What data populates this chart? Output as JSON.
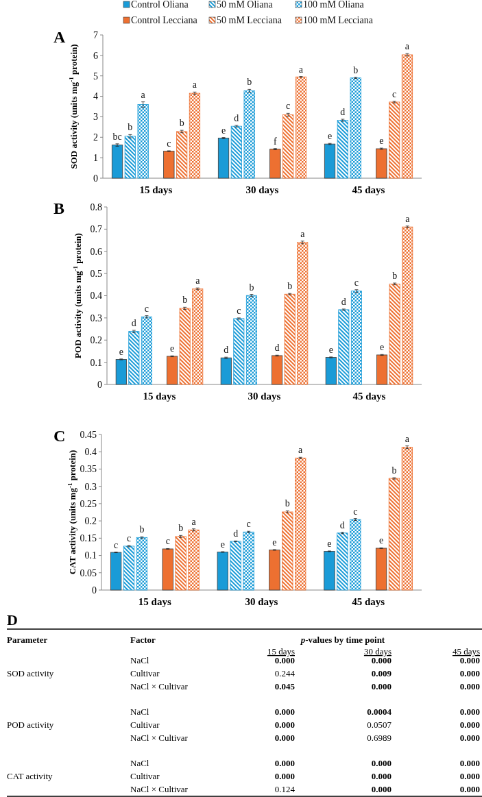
{
  "chart_data": [
    {
      "type": "bar",
      "title": "A",
      "ylabel": "SOD activity (units mg$^{-1}$ protein)",
      "categories": [
        "15 days",
        "30 days",
        "45 days"
      ],
      "ylim": [
        0,
        7
      ],
      "yticks": [
        0,
        1,
        2,
        3,
        4,
        5,
        6,
        7
      ],
      "legend": "top",
      "series": [
        {
          "name": "Control Oliana",
          "color": "#1a9bd7",
          "values": [
            1.62,
            1.96,
            1.67
          ],
          "errors": [
            0.06,
            0.03,
            0.03
          ],
          "value_labels": [
            "bc",
            "e",
            "e"
          ]
        },
        {
          "name": "50 mM Oliana",
          "color": "#1a9bd7",
          "values": [
            2.05,
            2.54,
            2.83
          ],
          "errors": [
            0.08,
            0.04,
            0.05
          ],
          "value_labels": [
            "b",
            "d",
            "d"
          ]
        },
        {
          "name": "100 mM Oliana",
          "color": "#1a9bd7",
          "values": [
            3.6,
            4.27,
            4.9
          ],
          "errors": [
            0.13,
            0.07,
            0.03
          ],
          "value_labels": [
            "a",
            "b",
            "b"
          ]
        },
        {
          "name": "Control Lecciana",
          "color": "#ed7031",
          "values": [
            1.32,
            1.42,
            1.44
          ],
          "errors": [
            0.02,
            0.03,
            0.03
          ],
          "value_labels": [
            "c",
            "f",
            "e"
          ]
        },
        {
          "name": "50 mM Lecciana",
          "color": "#ed7031",
          "values": [
            2.28,
            3.1,
            3.72
          ],
          "errors": [
            0.06,
            0.07,
            0.04
          ],
          "value_labels": [
            "b",
            "c",
            "c"
          ]
        },
        {
          "name": "100 mM Lecciana",
          "color": "#ed7031",
          "values": [
            4.15,
            4.95,
            6.03
          ],
          "errors": [
            0.06,
            0.02,
            0.06
          ],
          "value_labels": [
            "a",
            "a",
            "a"
          ]
        }
      ]
    },
    {
      "type": "bar",
      "title": "B",
      "ylabel": "POD activity (units mg$^{-1}$ protein)",
      "categories": [
        "15 days",
        "30 days",
        "45 days"
      ],
      "ylim": [
        0,
        0.8
      ],
      "yticks": [
        0,
        0.1,
        0.2,
        0.3,
        0.4,
        0.5,
        0.6,
        0.7,
        0.8
      ],
      "series": [
        {
          "color": "#1a9bd7",
          "values": [
            0.113,
            0.12,
            0.122
          ],
          "errors": [
            0.002,
            0.003,
            0.002
          ],
          "value_labels": [
            "e",
            "d",
            "e"
          ]
        },
        {
          "color": "#1a9bd7",
          "values": [
            0.239,
            0.297,
            0.337
          ],
          "errors": [
            0.005,
            0.003,
            0.003
          ],
          "value_labels": [
            "d",
            "c",
            "d"
          ]
        },
        {
          "color": "#1a9bd7",
          "values": [
            0.305,
            0.401,
            0.421
          ],
          "errors": [
            0.005,
            0.005,
            0.006
          ],
          "value_labels": [
            "c",
            "b",
            "c"
          ]
        },
        {
          "color": "#ed7031",
          "values": [
            0.127,
            0.13,
            0.133
          ],
          "errors": [
            0.002,
            0.002,
            0.002
          ],
          "value_labels": [
            "e",
            "d",
            "e"
          ]
        },
        {
          "color": "#ed7031",
          "values": [
            0.343,
            0.407,
            0.453
          ],
          "errors": [
            0.005,
            0.003,
            0.004
          ],
          "value_labels": [
            "b",
            "b",
            "b"
          ]
        },
        {
          "color": "#ed7031",
          "values": [
            0.431,
            0.64,
            0.71
          ],
          "errors": [
            0.004,
            0.006,
            0.004
          ],
          "value_labels": [
            "a",
            "a",
            "a"
          ]
        }
      ]
    },
    {
      "type": "bar",
      "title": "C",
      "ylabel": "CAT activity (units mg$^{-1}$ protein)",
      "categories": [
        "15 days",
        "30 days",
        "45 days"
      ],
      "ylim": [
        0,
        0.45
      ],
      "yticks": [
        0,
        0.05,
        0.1,
        0.15,
        0.2,
        0.25,
        0.3,
        0.35,
        0.4,
        0.45
      ],
      "series": [
        {
          "color": "#1a9bd7",
          "values": [
            0.109,
            0.11,
            0.112
          ],
          "errors": [
            0.001,
            0.001,
            0.001
          ],
          "value_labels": [
            "c",
            "e",
            "e"
          ]
        },
        {
          "color": "#1a9bd7",
          "values": [
            0.127,
            0.141,
            0.165
          ],
          "errors": [
            0.002,
            0.001,
            0.002
          ],
          "value_labels": [
            "c",
            "d",
            "d"
          ]
        },
        {
          "color": "#1a9bd7",
          "values": [
            0.152,
            0.168,
            0.204
          ],
          "errors": [
            0.002,
            0.002,
            0.003
          ],
          "value_labels": [
            "b",
            "c",
            "c"
          ]
        },
        {
          "color": "#ed7031",
          "values": [
            0.119,
            0.116,
            0.121
          ],
          "errors": [
            0.001,
            0.001,
            0.001
          ],
          "value_labels": [
            "c",
            "e",
            "e"
          ]
        },
        {
          "color": "#ed7031",
          "values": [
            0.155,
            0.226,
            0.323
          ],
          "errors": [
            0.003,
            0.003,
            0.002
          ],
          "value_labels": [
            "b",
            "b",
            "b"
          ]
        },
        {
          "color": "#ed7031",
          "values": [
            0.174,
            0.382,
            0.413
          ],
          "errors": [
            0.003,
            0.002,
            0.004
          ],
          "value_labels": [
            "a",
            "a",
            "a"
          ]
        }
      ]
    },
    {
      "type": "other",
      "title": "D",
      "annotations": [
        "Parameter",
        "Factor",
        "p-values by time point"
      ],
      "categories": [
        "15 days",
        "30 days",
        "45 days"
      ],
      "y_categories": [
        "NaCl",
        "Cultivar",
        "NaCl × Cultivar",
        "NaCl",
        "Cultivar",
        "NaCl × Cultivar",
        "NaCl",
        "Cultivar",
        "NaCl × Cultivar"
      ],
      "y2_categories": [
        null,
        "SOD activity",
        null,
        null,
        "POD activity",
        null,
        null,
        "CAT activity",
        null
      ],
      "cell_labels": [
        [
          "0.000",
          "0.000",
          "0.000"
        ],
        [
          "0.244",
          "0.009",
          "0.000"
        ],
        [
          "0.045",
          "0.000",
          "0.000"
        ],
        [
          "0.000",
          "0.0004",
          "0.000"
        ],
        [
          "0.000",
          "0.0507",
          "0.000"
        ],
        [
          "0.000",
          "0.6989",
          "0.000"
        ],
        [
          "0.000",
          "0.000",
          "0.000"
        ],
        [
          "0.000",
          "0.000",
          "0.000"
        ],
        [
          "0.124",
          "0.000",
          "0.000"
        ]
      ]
    }
  ]
}
